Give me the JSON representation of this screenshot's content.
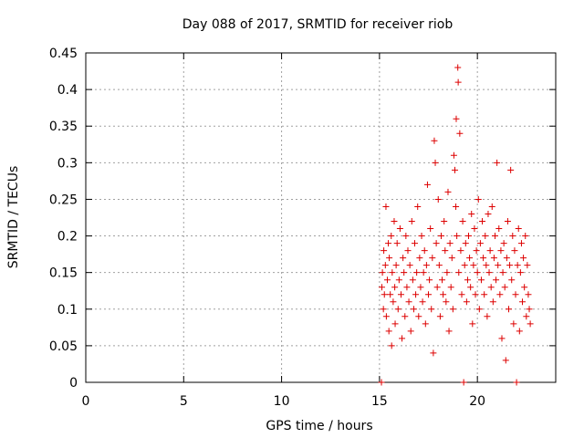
{
  "chart_data": {
    "type": "scatter",
    "title": "Day 088 of 2017, SRMTID for receiver riob",
    "xlabel": "GPS time / hours",
    "ylabel": "SRMTID / TECUs",
    "xlim": [
      0,
      24
    ],
    "ylim": [
      0,
      0.45
    ],
    "xticks": [
      0,
      5,
      10,
      15,
      20
    ],
    "yticks": [
      0,
      0.05,
      0.1,
      0.15,
      0.2,
      0.25,
      0.3,
      0.35,
      0.4,
      0.45
    ],
    "xtick_labels": [
      "0",
      "5",
      "10",
      "15",
      "20"
    ],
    "ytick_labels": [
      "0",
      "0.05",
      "0.1",
      "0.15",
      "0.2",
      "0.25",
      "0.3",
      "0.35",
      "0.4",
      "0.45"
    ],
    "grid": true,
    "marker": "+",
    "color": "#dd0000",
    "series": [
      {
        "name": "SRMTID",
        "x": [
          15.1,
          15.12,
          15.15,
          15.2,
          15.22,
          15.25,
          15.3,
          15.33,
          15.35,
          15.4,
          15.45,
          15.48,
          15.5,
          15.55,
          15.6,
          15.62,
          15.65,
          15.7,
          15.75,
          15.78,
          15.8,
          15.85,
          15.9,
          15.95,
          16.0,
          16.05,
          16.1,
          16.15,
          16.2,
          16.25,
          16.3,
          16.35,
          16.4,
          16.45,
          16.5,
          16.55,
          16.6,
          16.65,
          16.7,
          16.75,
          16.8,
          16.85,
          16.9,
          16.95,
          17.0,
          17.05,
          17.1,
          17.15,
          17.2,
          17.25,
          17.3,
          17.35,
          17.4,
          17.45,
          17.5,
          17.55,
          17.6,
          17.65,
          17.7,
          17.75,
          17.8,
          17.85,
          17.9,
          17.95,
          18.0,
          18.05,
          18.1,
          18.15,
          18.2,
          18.25,
          18.3,
          18.35,
          18.4,
          18.45,
          18.5,
          18.55,
          18.6,
          18.65,
          18.7,
          18.75,
          18.8,
          18.85,
          18.9,
          18.92,
          18.95,
          19.0,
          19.02,
          19.05,
          19.1,
          19.15,
          19.2,
          19.25,
          19.3,
          19.35,
          19.4,
          19.45,
          19.5,
          19.55,
          19.6,
          19.65,
          19.7,
          19.75,
          19.8,
          19.85,
          19.9,
          19.95,
          20.0,
          20.05,
          20.1,
          20.15,
          20.2,
          20.25,
          20.3,
          20.35,
          20.4,
          20.45,
          20.5,
          20.55,
          20.6,
          20.65,
          20.7,
          20.75,
          20.8,
          20.85,
          20.9,
          20.95,
          21.0,
          21.05,
          21.1,
          21.15,
          21.2,
          21.25,
          21.3,
          21.35,
          21.4,
          21.45,
          21.5,
          21.55,
          21.6,
          21.65,
          21.7,
          21.75,
          21.8,
          21.85,
          21.9,
          21.95,
          22.0,
          22.05,
          22.1,
          22.15,
          22.2,
          22.25,
          22.3,
          22.35,
          22.4,
          22.45,
          22.5,
          22.55,
          22.6,
          22.65,
          22.7
        ],
        "y": [
          0.0,
          0.13,
          0.15,
          0.1,
          0.18,
          0.12,
          0.16,
          0.24,
          0.09,
          0.14,
          0.19,
          0.07,
          0.17,
          0.12,
          0.2,
          0.05,
          0.15,
          0.11,
          0.22,
          0.13,
          0.08,
          0.16,
          0.19,
          0.1,
          0.14,
          0.21,
          0.12,
          0.06,
          0.17,
          0.15,
          0.09,
          0.2,
          0.13,
          0.18,
          0.11,
          0.16,
          0.07,
          0.22,
          0.14,
          0.1,
          0.19,
          0.12,
          0.15,
          0.24,
          0.09,
          0.17,
          0.13,
          0.2,
          0.11,
          0.15,
          0.18,
          0.08,
          0.16,
          0.27,
          0.12,
          0.14,
          0.21,
          0.1,
          0.17,
          0.04,
          0.33,
          0.3,
          0.19,
          0.13,
          0.25,
          0.16,
          0.09,
          0.2,
          0.14,
          0.12,
          0.22,
          0.18,
          0.11,
          0.15,
          0.26,
          0.07,
          0.19,
          0.13,
          0.17,
          0.1,
          0.31,
          0.29,
          0.24,
          0.36,
          0.2,
          0.43,
          0.41,
          0.15,
          0.34,
          0.18,
          0.12,
          0.22,
          0.0,
          0.16,
          0.19,
          0.11,
          0.14,
          0.2,
          0.17,
          0.13,
          0.23,
          0.08,
          0.16,
          0.21,
          0.12,
          0.18,
          0.15,
          0.25,
          0.1,
          0.19,
          0.14,
          0.22,
          0.17,
          0.12,
          0.2,
          0.16,
          0.09,
          0.23,
          0.15,
          0.18,
          0.13,
          0.24,
          0.11,
          0.17,
          0.2,
          0.14,
          0.3,
          0.16,
          0.21,
          0.12,
          0.18,
          0.06,
          0.15,
          0.19,
          0.13,
          0.03,
          0.17,
          0.22,
          0.1,
          0.16,
          0.29,
          0.14,
          0.2,
          0.08,
          0.18,
          0.12,
          0.0,
          0.16,
          0.21,
          0.07,
          0.15,
          0.19,
          0.11,
          0.17,
          0.13,
          0.2,
          0.09,
          0.16,
          0.12,
          0.1,
          0.08
        ]
      }
    ]
  }
}
